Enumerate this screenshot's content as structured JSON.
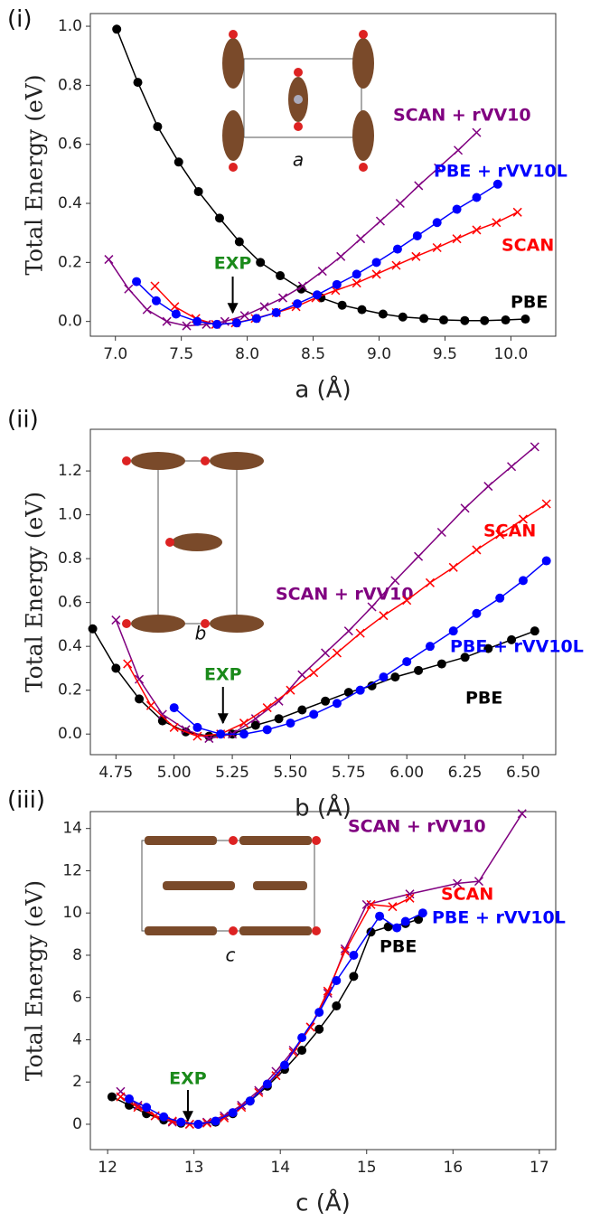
{
  "chart_data": [
    {
      "type": "line",
      "panel_label": "(i)",
      "inset_label": "a",
      "x_label": "a (Å)",
      "y_label": "Total Energy (eV)",
      "xlim": [
        6.81,
        10.34
      ],
      "ylim": [
        -0.05,
        1.043
      ],
      "xticks": [
        {
          "value": 7,
          "label": "7.0"
        },
        7.5,
        {
          "value": 8,
          "label": "8.0"
        },
        8.5,
        {
          "value": 9,
          "label": "9.0"
        },
        9.5,
        {
          "value": 10,
          "label": "10.0"
        }
      ],
      "yticks": [
        {
          "value": 0,
          "label": "0.0"
        },
        0.2,
        0.4,
        0.6,
        0.8,
        {
          "value": 1,
          "label": "1.0"
        }
      ],
      "annotations": [
        {
          "text": "EXP",
          "x": 7.89,
          "color": "#1a8a1a"
        }
      ],
      "series": [
        {
          "name": "PBE",
          "color": "#000000",
          "marker": "o",
          "x": [
            7.01,
            7.17,
            7.32,
            7.48,
            7.63,
            7.79,
            7.94,
            8.1,
            8.25,
            8.41,
            8.56,
            8.72,
            8.87,
            9.03,
            9.18,
            9.34,
            9.49,
            9.65,
            9.8,
            9.96,
            10.11
          ],
          "values": [
            0.99,
            0.81,
            0.66,
            0.54,
            0.44,
            0.35,
            0.27,
            0.2,
            0.155,
            0.11,
            0.08,
            0.055,
            0.04,
            0.025,
            0.015,
            0.01,
            0.005,
            0.003,
            0.003,
            0.005,
            0.008
          ]
        },
        {
          "name": "SCAN + rVV10",
          "color": "#800080",
          "marker": "x",
          "x": [
            6.95,
            7.1,
            7.24,
            7.39,
            7.54,
            7.69,
            7.83,
            7.98,
            8.13,
            8.27,
            8.42,
            8.57,
            8.71,
            8.86,
            9.01,
            9.16,
            9.3,
            9.45,
            9.6,
            9.74
          ],
          "values": [
            0.21,
            0.11,
            0.04,
            0.0,
            -0.015,
            -0.01,
            0.0,
            0.02,
            0.05,
            0.08,
            0.12,
            0.17,
            0.22,
            0.28,
            0.34,
            0.4,
            0.46,
            0.52,
            0.58,
            0.64
          ]
        },
        {
          "name": "SCAN",
          "color": "#ff0000",
          "marker": "x",
          "x": [
            7.3,
            7.45,
            7.61,
            7.76,
            7.91,
            8.06,
            8.22,
            8.37,
            8.52,
            8.67,
            8.83,
            8.98,
            9.13,
            9.28,
            9.44,
            9.59,
            9.74,
            9.89,
            10.05
          ],
          "values": [
            0.12,
            0.05,
            0.01,
            -0.01,
            -0.005,
            0.01,
            0.03,
            0.05,
            0.08,
            0.105,
            0.13,
            0.16,
            0.19,
            0.22,
            0.25,
            0.28,
            0.31,
            0.335,
            0.37
          ]
        },
        {
          "name": "PBE + rVV10L",
          "color": "#0000ff",
          "marker": "o",
          "x": [
            7.16,
            7.31,
            7.46,
            7.62,
            7.77,
            7.92,
            8.07,
            8.22,
            8.38,
            8.53,
            8.68,
            8.83,
            8.98,
            9.14,
            9.29,
            9.44,
            9.59,
            9.74,
            9.9
          ],
          "values": [
            0.135,
            0.07,
            0.025,
            0.0,
            -0.01,
            -0.005,
            0.01,
            0.03,
            0.06,
            0.09,
            0.125,
            0.16,
            0.2,
            0.245,
            0.29,
            0.335,
            0.38,
            0.42,
            0.465
          ]
        }
      ]
    },
    {
      "type": "line",
      "panel_label": "(ii)",
      "inset_label": "b",
      "x_label": "b (Å)",
      "y_label": "Total Energy (eV)",
      "xlim": [
        4.64,
        6.64
      ],
      "ylim": [
        -0.094,
        1.39
      ],
      "xticks": [
        4.75,
        {
          "value": 5,
          "label": "5.00"
        },
        5.25,
        {
          "value": 5.5,
          "label": "5.50"
        },
        5.75,
        {
          "value": 6,
          "label": "6.00"
        },
        6.25,
        {
          "value": 6.5,
          "label": "6.50"
        }
      ],
      "yticks": [
        {
          "value": 0,
          "label": "0.0"
        },
        0.2,
        0.4,
        0.6,
        0.8,
        {
          "value": 1,
          "label": "1.0"
        },
        1.2
      ],
      "annotations": [
        {
          "text": "EXP",
          "x": 5.21,
          "color": "#1a8a1a"
        }
      ],
      "series": [
        {
          "name": "PBE",
          "color": "#000000",
          "marker": "o",
          "x": [
            4.65,
            4.75,
            4.85,
            4.95,
            5.05,
            5.15,
            5.25,
            5.35,
            5.45,
            5.55,
            5.65,
            5.75,
            5.85,
            5.95,
            6.05,
            6.15,
            6.25,
            6.35,
            6.45,
            6.55
          ],
          "values": [
            0.48,
            0.3,
            0.16,
            0.06,
            0.01,
            -0.01,
            0.0,
            0.04,
            0.07,
            0.11,
            0.15,
            0.19,
            0.22,
            0.26,
            0.29,
            0.32,
            0.35,
            0.39,
            0.43,
            0.47
          ]
        },
        {
          "name": "SCAN + rVV10",
          "color": "#800080",
          "marker": "x",
          "x": [
            4.75,
            4.85,
            4.95,
            5.05,
            5.15,
            5.25,
            5.35,
            5.45,
            5.55,
            5.65,
            5.75,
            5.85,
            5.95,
            6.05,
            6.15,
            6.25,
            6.35,
            6.45,
            6.55
          ],
          "values": [
            0.52,
            0.25,
            0.09,
            0.02,
            -0.02,
            0.0,
            0.07,
            0.15,
            0.27,
            0.37,
            0.47,
            0.58,
            0.7,
            0.81,
            0.92,
            1.03,
            1.13,
            1.22,
            1.31
          ]
        },
        {
          "name": "SCAN",
          "color": "#ff0000",
          "marker": "x",
          "x": [
            4.8,
            4.9,
            5.0,
            5.1,
            5.2,
            5.3,
            5.4,
            5.5,
            5.6,
            5.7,
            5.8,
            5.9,
            6.0,
            6.1,
            6.2,
            6.3,
            6.4,
            6.5,
            6.6
          ],
          "values": [
            0.32,
            0.13,
            0.03,
            -0.01,
            0.0,
            0.05,
            0.12,
            0.2,
            0.28,
            0.37,
            0.46,
            0.54,
            0.61,
            0.69,
            0.76,
            0.84,
            0.91,
            0.98,
            1.05
          ]
        },
        {
          "name": "PBE + rVV10L",
          "color": "#0000ff",
          "marker": "o",
          "x": [
            5.0,
            5.1,
            5.2,
            5.3,
            5.4,
            5.5,
            5.6,
            5.7,
            5.8,
            5.9,
            6.0,
            6.1,
            6.2,
            6.3,
            6.4,
            6.5,
            6.6
          ],
          "values": [
            0.12,
            0.03,
            0.0,
            0.0,
            0.02,
            0.05,
            0.09,
            0.14,
            0.2,
            0.26,
            0.33,
            0.4,
            0.47,
            0.55,
            0.62,
            0.7,
            0.79
          ]
        }
      ]
    },
    {
      "type": "line",
      "panel_label": "(iii)",
      "inset_label": "c",
      "x_label": "c (Å)",
      "y_label": "Total Energy (eV)",
      "xlim": [
        11.8,
        17.19
      ],
      "ylim": [
        -1.2,
        14.8
      ],
      "xticks": [
        12,
        13,
        14,
        15,
        16,
        17
      ],
      "yticks": [
        0,
        2,
        4,
        6,
        8,
        10,
        12,
        14
      ],
      "annotations": [
        {
          "text": "EXP",
          "x": 12.93,
          "color": "#1a8a1a"
        }
      ],
      "series": [
        {
          "name": "PBE",
          "color": "#000000",
          "marker": "o",
          "x": [
            12.05,
            12.25,
            12.45,
            12.65,
            12.85,
            13.05,
            13.25,
            13.45,
            13.65,
            13.85,
            14.05,
            14.25,
            14.45,
            14.65,
            14.85,
            15.05,
            15.25,
            15.45,
            15.6
          ],
          "values": [
            1.3,
            0.9,
            0.5,
            0.2,
            0.05,
            0.0,
            0.1,
            0.5,
            1.1,
            1.8,
            2.6,
            3.5,
            4.5,
            5.6,
            7.0,
            9.1,
            9.35,
            9.5,
            9.7
          ]
        },
        {
          "name": "SCAN + rVV10",
          "color": "#800080",
          "marker": "x",
          "x": [
            12.15,
            12.35,
            12.55,
            12.75,
            12.95,
            13.15,
            13.35,
            13.55,
            13.75,
            13.95,
            14.15,
            14.35,
            14.55,
            14.75,
            15.0,
            15.5,
            16.05,
            16.3,
            16.8
          ],
          "values": [
            1.55,
            0.9,
            0.4,
            0.1,
            0.0,
            0.1,
            0.4,
            0.9,
            1.6,
            2.5,
            3.5,
            4.6,
            6.2,
            8.3,
            10.4,
            10.9,
            11.4,
            11.5,
            14.7
          ]
        },
        {
          "name": "SCAN",
          "color": "#ff0000",
          "marker": "x",
          "x": [
            12.15,
            12.35,
            12.55,
            12.75,
            12.95,
            13.15,
            13.35,
            13.55,
            13.75,
            13.95,
            14.15,
            14.35,
            14.55,
            14.75,
            15.05,
            15.3,
            15.5
          ],
          "values": [
            1.3,
            0.8,
            0.4,
            0.15,
            0.0,
            0.05,
            0.3,
            0.8,
            1.5,
            2.3,
            3.4,
            4.6,
            6.3,
            8.2,
            10.4,
            10.3,
            10.7
          ]
        },
        {
          "name": "PBE + rVV10L",
          "color": "#0000ff",
          "marker": "o",
          "x": [
            12.25,
            12.45,
            12.65,
            12.85,
            13.05,
            13.25,
            13.45,
            13.65,
            13.85,
            14.05,
            14.25,
            14.45,
            14.65,
            14.85,
            15.15,
            15.35,
            15.45,
            15.65
          ],
          "values": [
            1.2,
            0.8,
            0.35,
            0.1,
            0.0,
            0.15,
            0.55,
            1.1,
            1.9,
            2.8,
            4.1,
            5.3,
            6.8,
            8.0,
            9.85,
            9.3,
            9.6,
            10.0
          ]
        }
      ]
    }
  ]
}
